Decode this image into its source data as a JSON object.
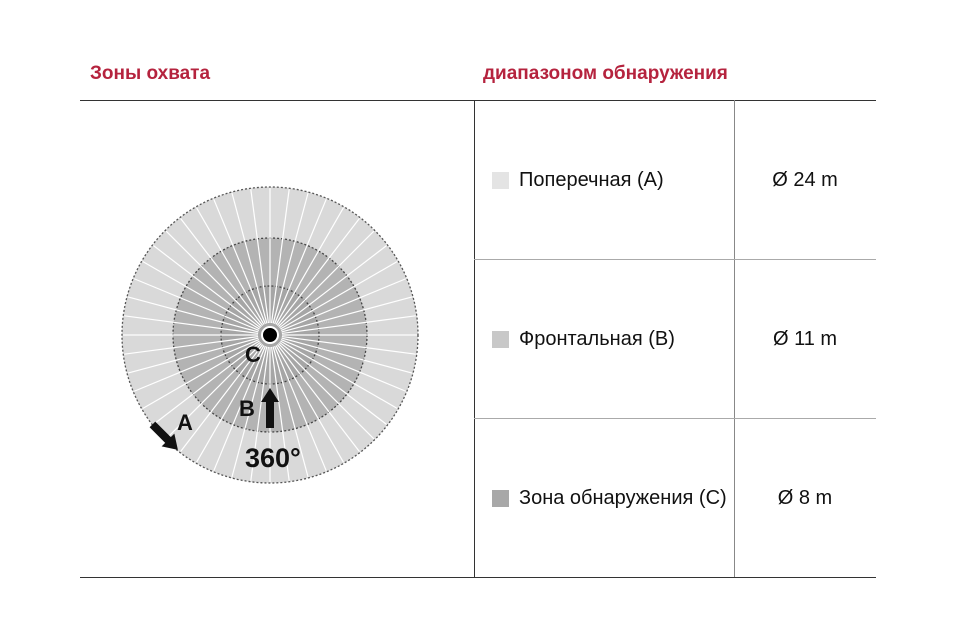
{
  "header": {
    "left_title": "Зоны охвата",
    "right_title": "диапазоном обнаружения"
  },
  "diagram": {
    "labels": {
      "a": "A",
      "b": "B",
      "c": "C",
      "angle": "360°"
    },
    "colors": {
      "outer": "#d9d9d9",
      "middle": "#b3b3b3",
      "inner": "#a6a6a6"
    }
  },
  "rows": [
    {
      "label": "Поперечная (A)",
      "value": "Ø 24 m",
      "swatch": "#e4e4e4"
    },
    {
      "label": "Фронтальная (B)",
      "value": "Ø 11 m",
      "swatch": "#c8c8c8"
    },
    {
      "label": "Зона обнаружения (C)",
      "value": "Ø 8 m",
      "swatch": "#a8a8a8"
    }
  ]
}
